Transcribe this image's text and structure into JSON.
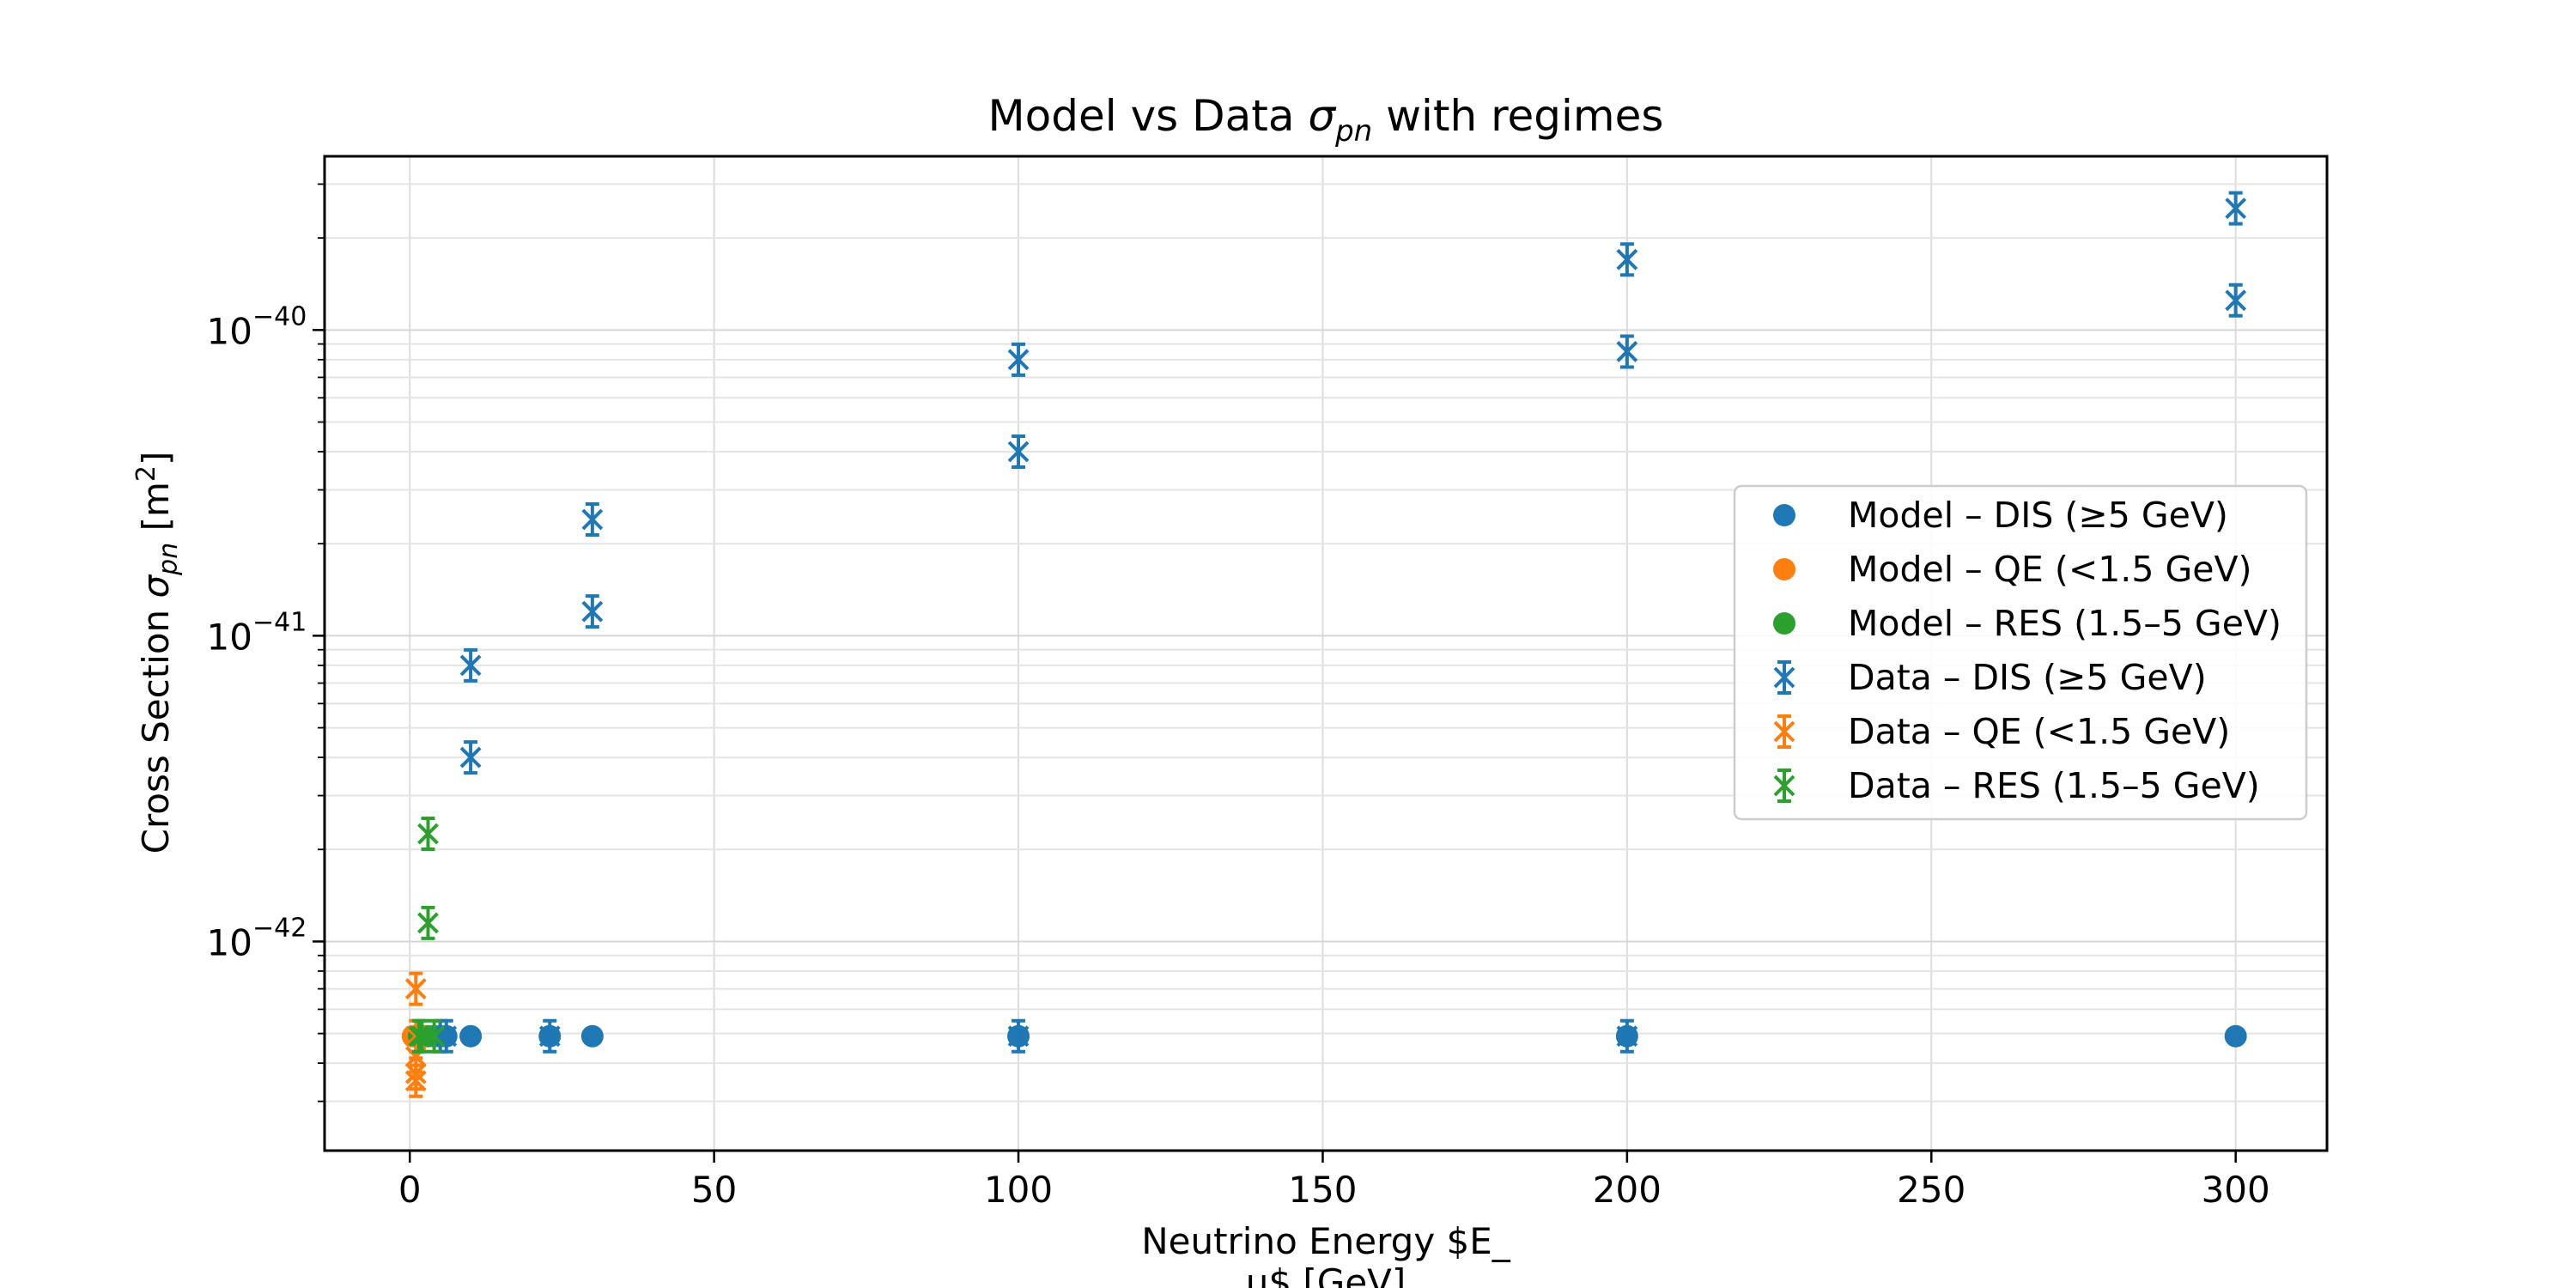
{
  "chart_data": {
    "type": "scatter",
    "title_parts": [
      "Model vs Data ",
      "σ",
      "pn",
      " with regimes"
    ],
    "xlabel_lines": [
      "Neutrino Energy $E_",
      "u$ [GeV]"
    ],
    "ylabel_parts": [
      "Cross Section ",
      "σ",
      "pn",
      " [m",
      "2",
      "]"
    ],
    "xlim": [
      -14,
      315
    ],
    "ylim": [
      2.07e-43,
      3.7e-40
    ],
    "yscale": "log",
    "grid": true,
    "legend_position": "center-right",
    "x_ticks": [
      {
        "value": 0,
        "label": "0"
      },
      {
        "value": 50,
        "label": "50"
      },
      {
        "value": 100,
        "label": "100"
      },
      {
        "value": 150,
        "label": "150"
      },
      {
        "value": 200,
        "label": "200"
      },
      {
        "value": 250,
        "label": "250"
      },
      {
        "value": 300,
        "label": "300"
      }
    ],
    "y_ticks": [
      {
        "value": 1e-42,
        "base": "10",
        "exp": "−42"
      },
      {
        "value": 1e-41,
        "base": "10",
        "exp": "−41"
      },
      {
        "value": 1e-40,
        "base": "10",
        "exp": "−40"
      }
    ],
    "series": [
      {
        "name": "Model – DIS (≥5 GeV)",
        "kind": "model",
        "color": "#1f77b4",
        "x": [
          5,
          6,
          10,
          23,
          30,
          100,
          200,
          300
        ],
        "y": [
          4.9e-43,
          4.9e-43,
          4.9e-43,
          4.9e-43,
          4.9e-43,
          4.9e-43,
          4.9e-43,
          4.9e-43
        ]
      },
      {
        "name": "Model – QE (<1.5 GeV)",
        "kind": "model",
        "color": "#ff7f0e",
        "x": [
          0.5,
          1.0
        ],
        "y": [
          4.9e-43,
          4.9e-43
        ]
      },
      {
        "name": "Model – RES (1.5–5 GeV)",
        "kind": "model",
        "color": "#2ca02c",
        "x": [
          1.5,
          2,
          3,
          4
        ],
        "y": [
          4.9e-43,
          4.9e-43,
          4.9e-43,
          4.9e-43
        ]
      },
      {
        "name": "Data – DIS (≥5 GeV)",
        "kind": "data",
        "color": "#1f77b4",
        "x": [
          5,
          6,
          10,
          10,
          23,
          30,
          30,
          100,
          100,
          100,
          200,
          200,
          200,
          300,
          300
        ],
        "y": [
          4.9e-43,
          4.9e-43,
          4e-42,
          8e-42,
          4.9e-43,
          1.2e-41,
          2.4e-41,
          4.9e-43,
          4e-41,
          8e-41,
          4.9e-43,
          8.5e-41,
          1.7e-40,
          1.25e-40,
          2.5e-40
        ]
      },
      {
        "name": "Data – QE (<1.5 GeV)",
        "kind": "data",
        "color": "#ff7f0e",
        "x": [
          1,
          1,
          1,
          1,
          1
        ],
        "y": [
          7e-43,
          4.9e-43,
          4.2e-43,
          3.7e-43,
          3.5e-43
        ]
      },
      {
        "name": "Data – RES (1.5–5 GeV)",
        "kind": "data",
        "color": "#2ca02c",
        "x": [
          1.5,
          2,
          3,
          3,
          4
        ],
        "y": [
          4.9e-43,
          4.9e-43,
          1.15e-42,
          2.25e-42,
          4.9e-43
        ]
      }
    ]
  }
}
